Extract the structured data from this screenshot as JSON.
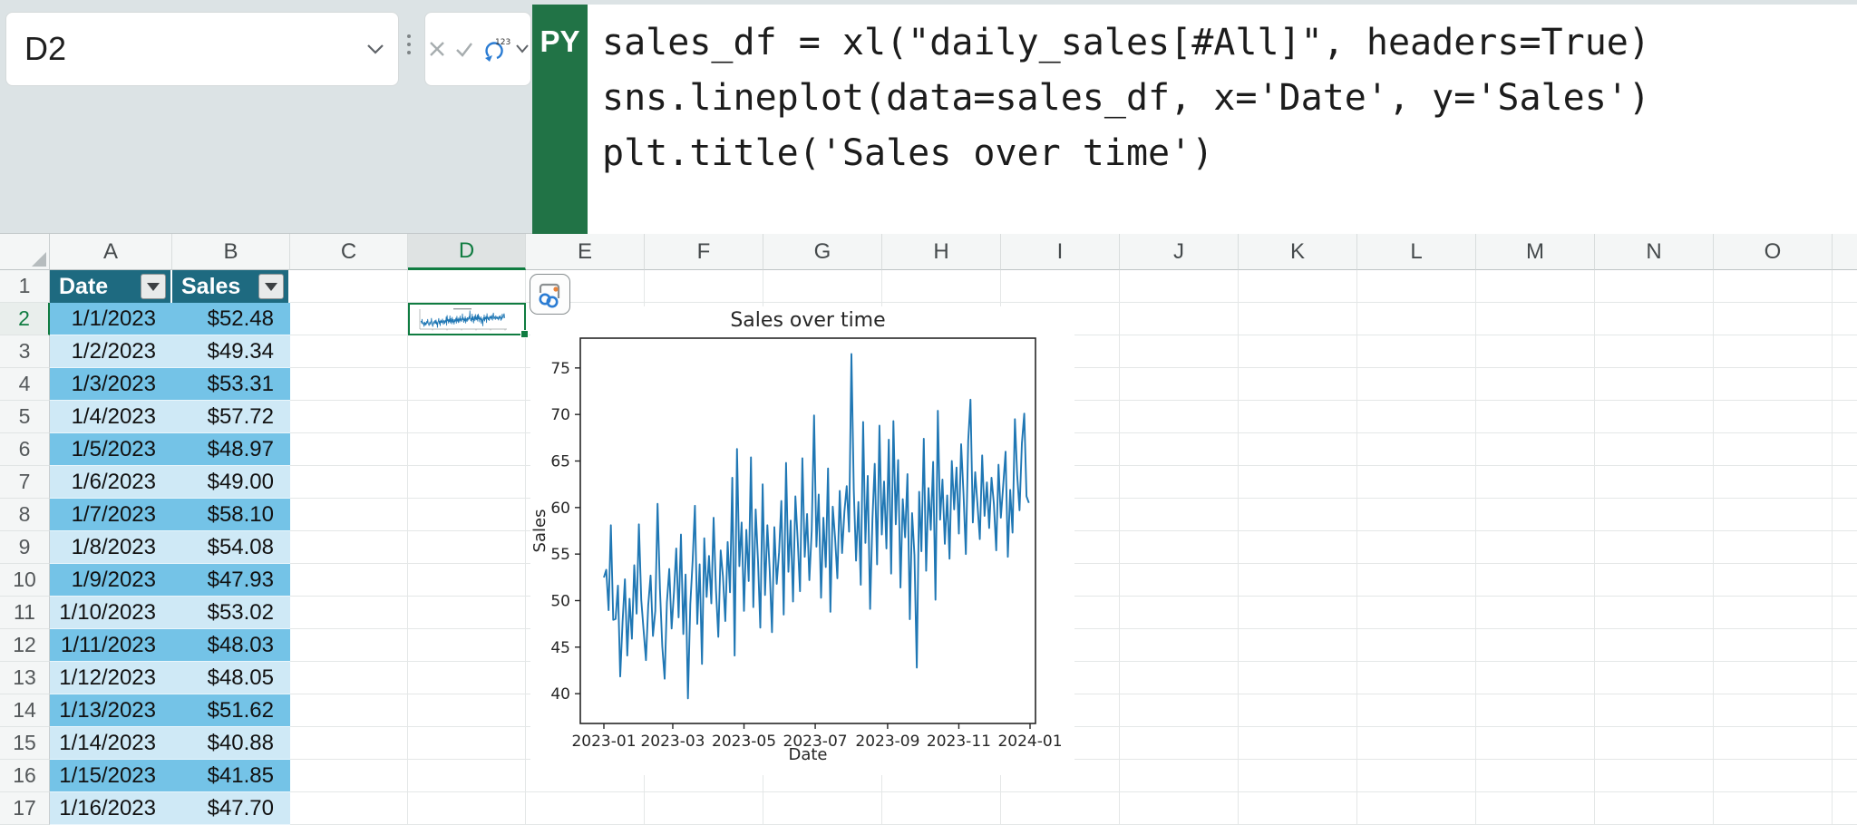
{
  "app": {
    "name_box": "D2"
  },
  "formula_bar": {
    "language_badge": "PY",
    "code_lines": [
      "sales_df = xl(\"daily_sales[#All]\", headers=True)",
      "sns.lineplot(data=sales_df, x='Date', y='Sales')",
      "plt.title('Sales over time')"
    ]
  },
  "grid": {
    "column_letters": [
      "A",
      "B",
      "C",
      "D",
      "E",
      "F",
      "G",
      "H",
      "I",
      "J",
      "K",
      "L",
      "M",
      "N",
      "O"
    ],
    "selected_column": "D",
    "selected_cell": "D2",
    "selected_row": 2,
    "row_numbers": [
      1,
      2,
      3,
      4,
      5,
      6,
      7,
      8,
      9,
      10,
      11,
      12,
      13,
      14,
      15,
      16,
      17
    ]
  },
  "table": {
    "headers": [
      "Date",
      "Sales"
    ],
    "rows": [
      [
        "1/1/2023",
        "$52.48"
      ],
      [
        "1/2/2023",
        "$49.34"
      ],
      [
        "1/3/2023",
        "$53.31"
      ],
      [
        "1/4/2023",
        "$57.72"
      ],
      [
        "1/5/2023",
        "$48.97"
      ],
      [
        "1/6/2023",
        "$49.00"
      ],
      [
        "1/7/2023",
        "$58.10"
      ],
      [
        "1/8/2023",
        "$54.08"
      ],
      [
        "1/9/2023",
        "$47.93"
      ],
      [
        "1/10/2023",
        "$53.02"
      ],
      [
        "1/11/2023",
        "$48.03"
      ],
      [
        "1/12/2023",
        "$48.05"
      ],
      [
        "1/13/2023",
        "$51.62"
      ],
      [
        "1/14/2023",
        "$40.88"
      ],
      [
        "1/15/2023",
        "$41.85"
      ],
      [
        "1/16/2023",
        "$47.70"
      ]
    ]
  },
  "colors": {
    "table_header_fill": "#1E6A80",
    "band_strong": "#74C3E7",
    "band_light": "#CFE9F6",
    "selection_green": "#107C41",
    "py_badge_green": "#217346",
    "chart_line": "#1F77B4"
  },
  "chart_data": {
    "type": "line",
    "title": "Sales over time",
    "xlabel": "Date",
    "ylabel": "Sales",
    "x_tick_labels": [
      "2023-01",
      "2023-03",
      "2023-05",
      "2023-07",
      "2023-09",
      "2023-11",
      "2024-01"
    ],
    "x_tick_day_offsets": [
      0,
      59,
      120,
      181,
      243,
      304,
      365
    ],
    "y_ticks": [
      40,
      45,
      50,
      55,
      60,
      65,
      70,
      75
    ],
    "ylim": [
      36.8,
      78.2
    ],
    "x_range_days": 365,
    "x_step_days": 2,
    "grid": false,
    "legend": false,
    "series": [
      {
        "name": "Sales",
        "color": "#1F77B4",
        "values": [
          52.48,
          53.31,
          48.97,
          58.1,
          47.93,
          48.03,
          51.62,
          41.85,
          47.7,
          52.3,
          44.1,
          50.2,
          45.9,
          53.8,
          48.6,
          58.2,
          50.1,
          46.8,
          43.6,
          49.5,
          52.7,
          46.2,
          48.9,
          60.4,
          51.3,
          45.1,
          41.6,
          49.8,
          53.4,
          47.0,
          50.9,
          55.6,
          48.2,
          57.1,
          46.4,
          52.8,
          39.5,
          49.6,
          54.3,
          60.2,
          47.5,
          53.9,
          43.2,
          56.7,
          50.4,
          54.8,
          49.7,
          58.9,
          51.2,
          46.1,
          55.4,
          52.6,
          47.8,
          56.3,
          50.9,
          63.2,
          44.1,
          66.3,
          53.7,
          58.4,
          48.9,
          57.6,
          52.1,
          65.4,
          49.3,
          59.8,
          54.2,
          47.1,
          62.5,
          50.6,
          58.1,
          53.4,
          46.6,
          57.9,
          51.8,
          55.2,
          60.7,
          48.5,
          64.8,
          53.1,
          58.6,
          49.9,
          61.2,
          56.4,
          51.0,
          65.3,
          54.7,
          59.3,
          52.2,
          57.5,
          69.9,
          55.8,
          61.4,
          50.3,
          58.9,
          53.6,
          64.2,
          48.8,
          60.1,
          56.7,
          52.4,
          61.8,
          55.1,
          59.6,
          62.3,
          57.4,
          76.5,
          61.9,
          54.3,
          60.6,
          51.7,
          69.2,
          56.2,
          63.4,
          49.1,
          58.8,
          64.7,
          53.9,
          68.8,
          57.1,
          62.8,
          55.6,
          67.3,
          52.9,
          69.3,
          58.2,
          65.1,
          51.4,
          60.9,
          56.8,
          63.6,
          48.0,
          59.4,
          54.9,
          42.8,
          61.7,
          55.3,
          67.4,
          53.2,
          62.1,
          57.6,
          64.9,
          50.1,
          70.4,
          58.7,
          63.0,
          56.1,
          61.3,
          54.5,
          65.0,
          59.8,
          64.3,
          57.2,
          66.8,
          61.5,
          55.0,
          67.2,
          71.6,
          58.4,
          63.8,
          60.2,
          56.6,
          65.6,
          59.1,
          62.7,
          57.8,
          63.2,
          60.4,
          55.4,
          64.6,
          58.9,
          62.4,
          66.0,
          54.7,
          61.9,
          57.3,
          69.5,
          63.5,
          59.7,
          66.9,
          70.1,
          61.2,
          60.5
        ]
      }
    ]
  }
}
